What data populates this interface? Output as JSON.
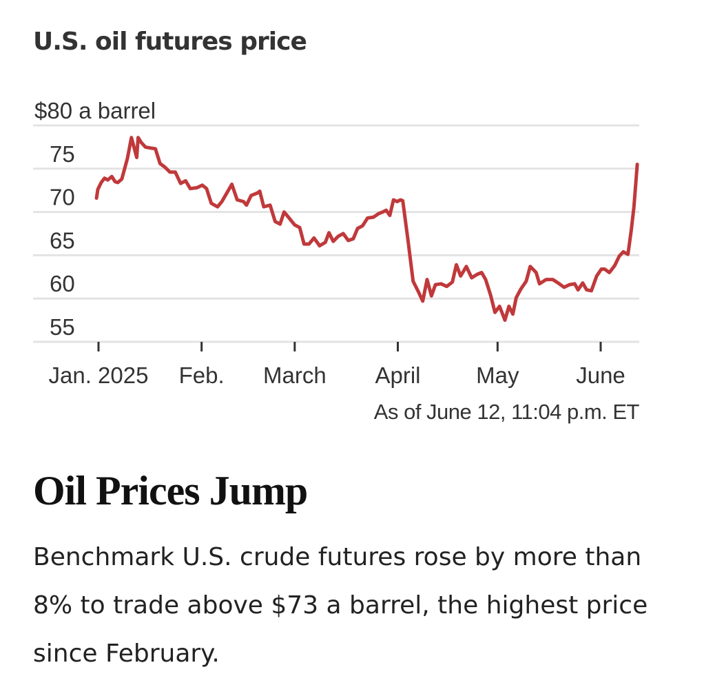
{
  "chart_title": "U.S. oil futures price",
  "source_note": "As of June 12, 11:04 p.m. ET",
  "headline": "Oil Prices Jump",
  "summary": "Benchmark U.S. crude futures rose by more than 8% to trade above $73 a barrel, the highest price since February.",
  "colors": {
    "line": "#c0393b",
    "grid": "#e3e3e3",
    "text": "#333333"
  },
  "chart_data": {
    "type": "line",
    "title": "U.S. oil futures price",
    "xlabel": "",
    "ylabel": "$ a barrel",
    "x_unit": "days since Jan. 1, 2025",
    "xlim": [
      -19,
      162.2
    ],
    "ylim": [
      55,
      80
    ],
    "grid": true,
    "y_ticks": [
      {
        "value": 80,
        "label": "$80 a barrel"
      },
      {
        "value": 75,
        "label": "75"
      },
      {
        "value": 70,
        "label": "70"
      },
      {
        "value": 65,
        "label": "65"
      },
      {
        "value": 60,
        "label": "60"
      },
      {
        "value": 55,
        "label": "55"
      }
    ],
    "x_ticks": [
      {
        "value": 0,
        "label": "Jan. 2025"
      },
      {
        "value": 31,
        "label": "Feb."
      },
      {
        "value": 59,
        "label": "March"
      },
      {
        "value": 90,
        "label": "April"
      },
      {
        "value": 120,
        "label": "May"
      },
      {
        "value": 151,
        "label": "June"
      }
    ],
    "series": [
      {
        "name": "U.S. oil futures price",
        "points": [
          [
            -0.6,
            71.6
          ],
          [
            -0.2,
            72.6
          ],
          [
            0.8,
            73.4
          ],
          [
            1.8,
            73.9
          ],
          [
            2.8,
            73.7
          ],
          [
            4.0,
            74.1
          ],
          [
            5.0,
            73.5
          ],
          [
            5.8,
            73.4
          ],
          [
            7.0,
            73.8
          ],
          [
            8.7,
            76.2
          ],
          [
            9.9,
            78.6
          ],
          [
            11.5,
            76.3
          ],
          [
            11.9,
            78.6
          ],
          [
            12.9,
            78.0
          ],
          [
            14.1,
            77.5
          ],
          [
            15.5,
            77.4
          ],
          [
            17.1,
            77.3
          ],
          [
            18.5,
            75.6
          ],
          [
            19.9,
            75.2
          ],
          [
            21.5,
            74.6
          ],
          [
            23.1,
            74.6
          ],
          [
            24.7,
            73.3
          ],
          [
            26.2,
            73.6
          ],
          [
            27.6,
            72.7
          ],
          [
            29.6,
            72.8
          ],
          [
            31.2,
            73.1
          ],
          [
            32.5,
            72.7
          ],
          [
            33.9,
            71.0
          ],
          [
            35.8,
            70.6
          ],
          [
            37.1,
            71.2
          ],
          [
            40.1,
            73.2
          ],
          [
            41.7,
            71.4
          ],
          [
            43.6,
            71.2
          ],
          [
            44.5,
            70.8
          ],
          [
            45.9,
            71.9
          ],
          [
            47.8,
            72.2
          ],
          [
            48.5,
            72.4
          ],
          [
            49.7,
            70.6
          ],
          [
            51.6,
            70.8
          ],
          [
            53.1,
            68.9
          ],
          [
            54.6,
            68.6
          ],
          [
            55.8,
            70.0
          ],
          [
            57.1,
            69.4
          ],
          [
            59.0,
            68.5
          ],
          [
            60.5,
            68.2
          ],
          [
            61.8,
            66.3
          ],
          [
            63.3,
            66.3
          ],
          [
            64.8,
            67.0
          ],
          [
            66.5,
            66.1
          ],
          [
            68.2,
            66.5
          ],
          [
            69.3,
            67.6
          ],
          [
            70.6,
            66.6
          ],
          [
            72.1,
            67.2
          ],
          [
            73.6,
            67.5
          ],
          [
            75.1,
            66.7
          ],
          [
            76.6,
            66.9
          ],
          [
            77.9,
            68.1
          ],
          [
            79.4,
            68.4
          ],
          [
            80.9,
            69.3
          ],
          [
            82.7,
            69.4
          ],
          [
            84.2,
            69.8
          ],
          [
            85.5,
            70.0
          ],
          [
            86.5,
            70.2
          ],
          [
            87.6,
            69.6
          ],
          [
            88.7,
            71.4
          ],
          [
            89.8,
            71.2
          ],
          [
            90.8,
            71.4
          ],
          [
            91.5,
            71.3
          ],
          [
            93.1,
            66.6
          ],
          [
            94.6,
            62.0
          ],
          [
            96.3,
            60.7
          ],
          [
            97.5,
            59.7
          ],
          [
            98.8,
            62.2
          ],
          [
            100.1,
            60.3
          ],
          [
            101.3,
            61.6
          ],
          [
            103.0,
            61.7
          ],
          [
            104.7,
            61.4
          ],
          [
            106.4,
            61.9
          ],
          [
            107.6,
            63.9
          ],
          [
            108.9,
            62.6
          ],
          [
            110.6,
            63.7
          ],
          [
            112.2,
            62.4
          ],
          [
            113.9,
            62.8
          ],
          [
            115.2,
            63.0
          ],
          [
            116.4,
            62.2
          ],
          [
            117.9,
            60.4
          ],
          [
            119.2,
            58.4
          ],
          [
            120.6,
            59.1
          ],
          [
            122.2,
            57.5
          ],
          [
            123.4,
            59.1
          ],
          [
            124.6,
            58.2
          ],
          [
            125.6,
            60.1
          ],
          [
            127.0,
            61.1
          ],
          [
            128.6,
            62.0
          ],
          [
            129.8,
            63.7
          ],
          [
            130.6,
            63.4
          ],
          [
            131.6,
            63.0
          ],
          [
            132.6,
            61.7
          ],
          [
            134.6,
            62.2
          ],
          [
            136.6,
            62.2
          ],
          [
            138.2,
            61.8
          ],
          [
            140.0,
            61.3
          ],
          [
            141.6,
            61.6
          ],
          [
            143.2,
            61.7
          ],
          [
            144.2,
            61.0
          ],
          [
            145.6,
            61.8
          ],
          [
            146.8,
            61.0
          ],
          [
            148.2,
            60.9
          ],
          [
            149.8,
            62.6
          ],
          [
            151.2,
            63.4
          ],
          [
            152.2,
            63.4
          ],
          [
            153.6,
            63.0
          ],
          [
            155.2,
            63.8
          ],
          [
            156.6,
            64.9
          ],
          [
            157.8,
            65.4
          ],
          [
            159.2,
            65.1
          ],
          [
            160.2,
            67.9
          ],
          [
            161.0,
            70.6
          ],
          [
            162.0,
            75.5
          ]
        ]
      }
    ]
  }
}
